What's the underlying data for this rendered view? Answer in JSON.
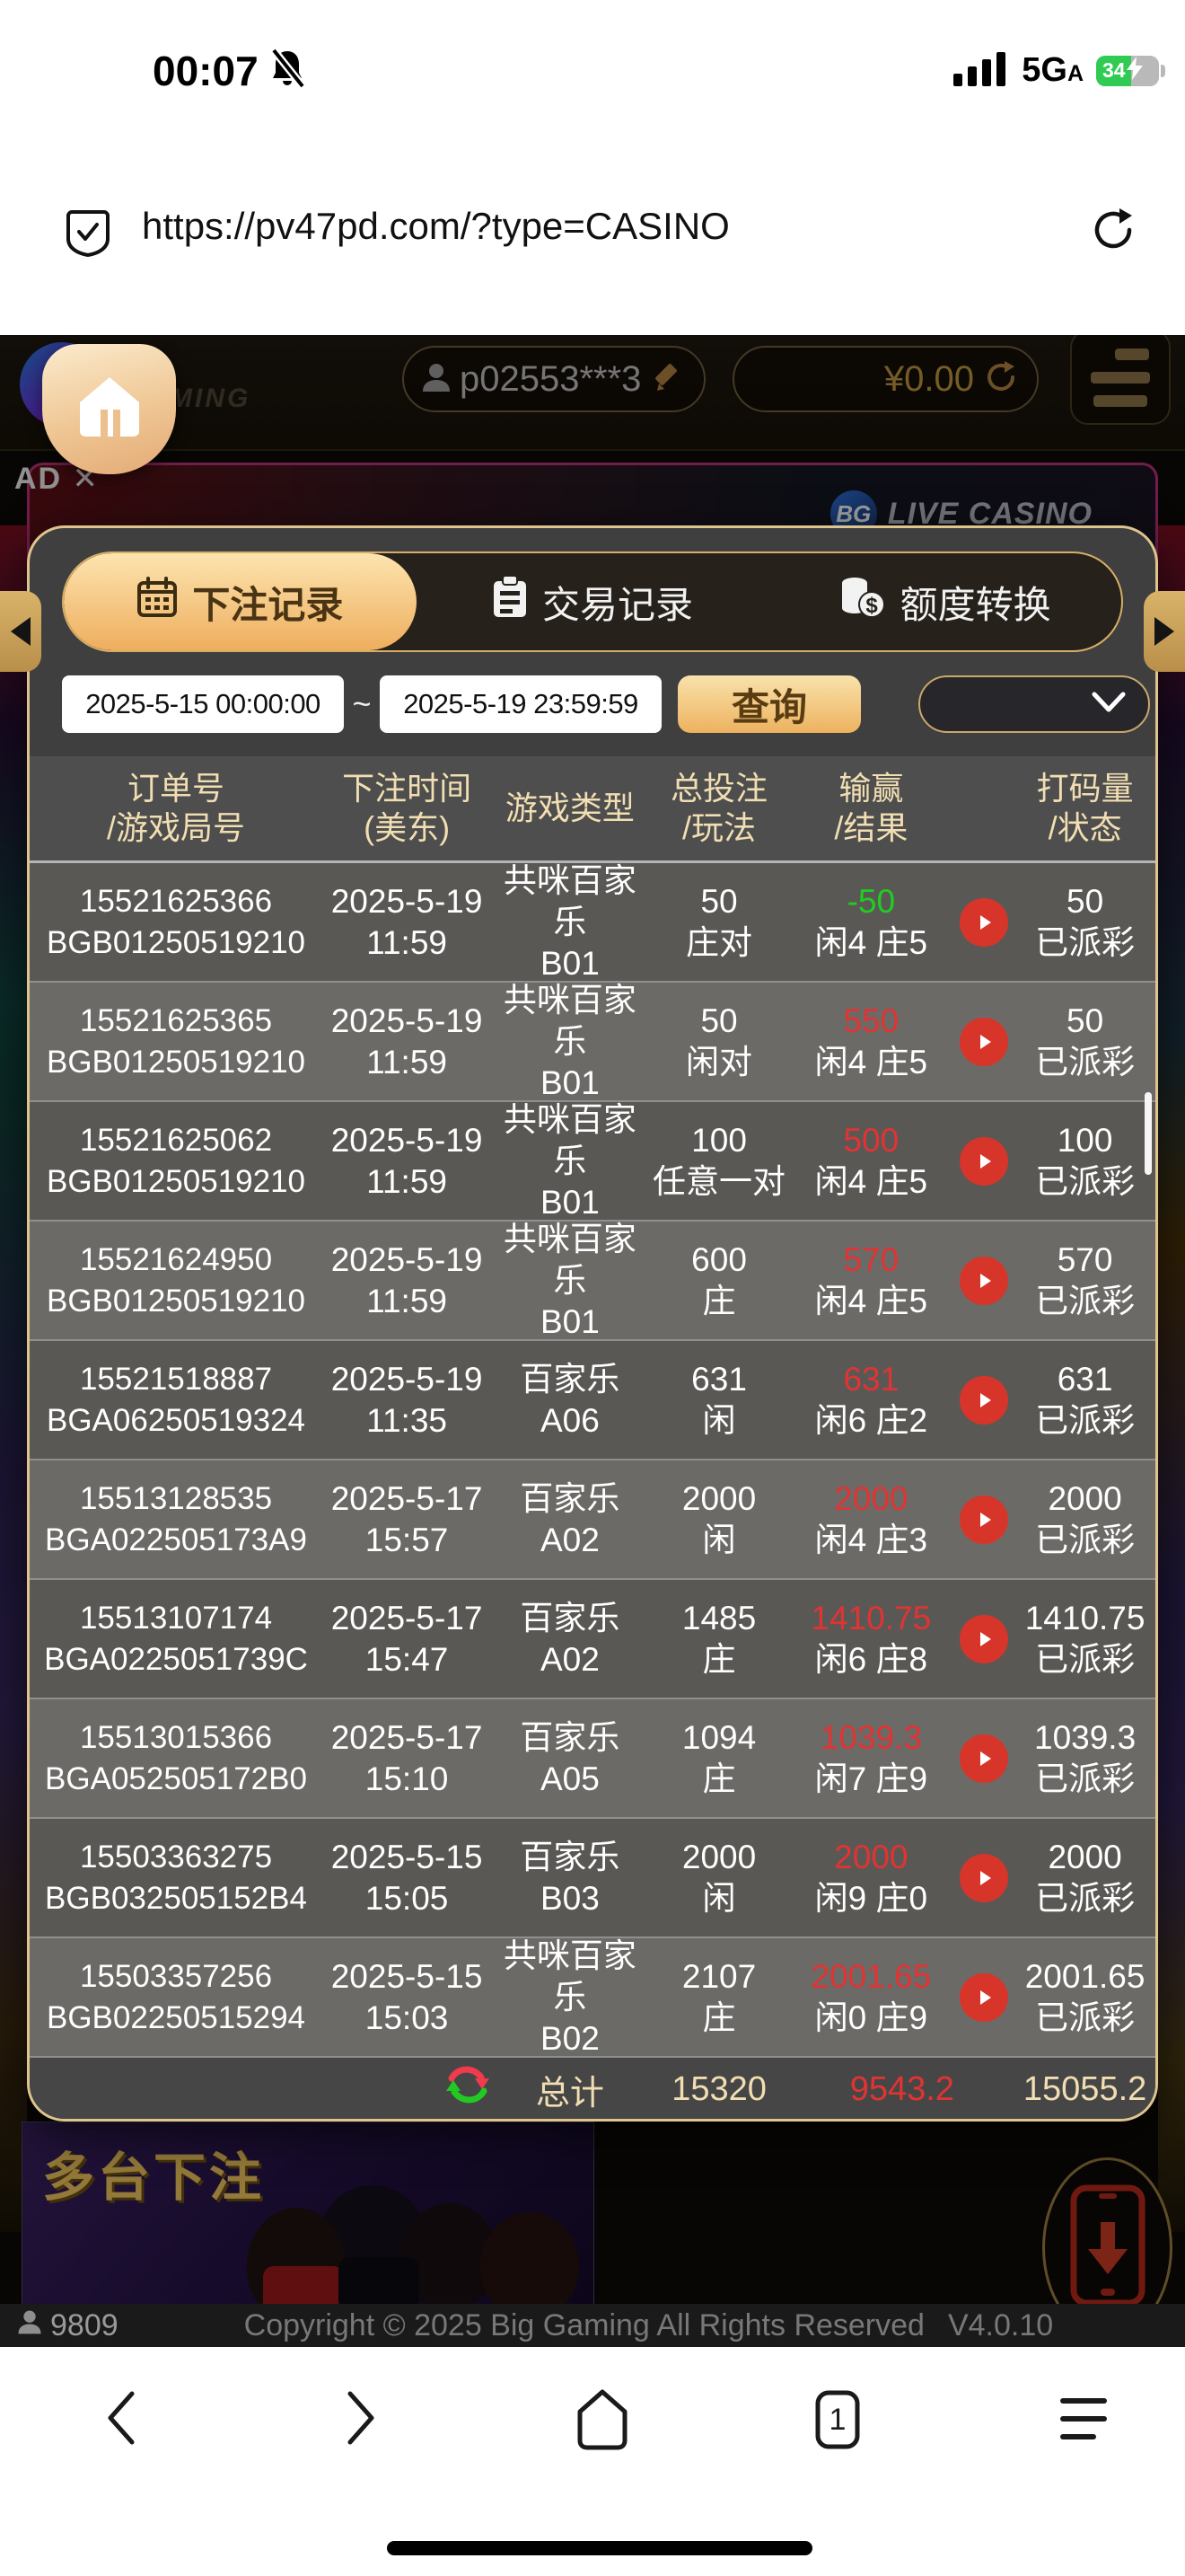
{
  "status_bar": {
    "time": "00:07",
    "network": "5G",
    "network_sub": "A",
    "battery": "34"
  },
  "url_bar": {
    "url": "https://pv47pd.com/?type=CASINO"
  },
  "site_header": {
    "logo_letter": "B",
    "logo_word": "GAMING",
    "username": "p02553***3",
    "balance": "¥0.00"
  },
  "ad": {
    "label": "AD ✕",
    "logo": "BG",
    "title": "LIVE CASINO"
  },
  "modal": {
    "tabs": [
      {
        "label": "下注记录"
      },
      {
        "label": "交易记录"
      },
      {
        "label": "额度转换"
      }
    ],
    "filter": {
      "from": "2025-5-15 00:00:00",
      "separator": "~",
      "to": "2025-5-19 23:59:59",
      "search_label": "查询"
    },
    "table": {
      "headers": [
        {
          "l1": "订单号",
          "l2": "/游戏局号"
        },
        {
          "l1": "下注时间",
          "l2": "(美东)"
        },
        {
          "l1": "游戏类型",
          "l2": ""
        },
        {
          "l1": "总投注",
          "l2": "/玩法"
        },
        {
          "l1": "输赢",
          "l2": "/结果"
        },
        {
          "l1": "打码量",
          "l2": "/状态"
        }
      ],
      "rows": [
        {
          "order_id": "15521625366",
          "round_id": "BGB01250519210",
          "date": "2025-5-19",
          "time": "11:59",
          "game_line1": "共咪百家乐",
          "game_line2": "B01",
          "bet": "50",
          "play": "庄对",
          "win": "-50",
          "win_color": "green",
          "outcome": "闲4 庄5",
          "turnover": "50",
          "status": "已派彩"
        },
        {
          "order_id": "15521625365",
          "round_id": "BGB01250519210",
          "date": "2025-5-19",
          "time": "11:59",
          "game_line1": "共咪百家乐",
          "game_line2": "B01",
          "bet": "50",
          "play": "闲对",
          "win": "550",
          "win_color": "red",
          "outcome": "闲4 庄5",
          "turnover": "50",
          "status": "已派彩"
        },
        {
          "order_id": "15521625062",
          "round_id": "BGB01250519210",
          "date": "2025-5-19",
          "time": "11:59",
          "game_line1": "共咪百家乐",
          "game_line2": "B01",
          "bet": "100",
          "play": "任意一对",
          "win": "500",
          "win_color": "red",
          "outcome": "闲4 庄5",
          "turnover": "100",
          "status": "已派彩"
        },
        {
          "order_id": "15521624950",
          "round_id": "BGB01250519210",
          "date": "2025-5-19",
          "time": "11:59",
          "game_line1": "共咪百家乐",
          "game_line2": "B01",
          "bet": "600",
          "play": "庄",
          "win": "570",
          "win_color": "red",
          "outcome": "闲4 庄5",
          "turnover": "570",
          "status": "已派彩"
        },
        {
          "order_id": "15521518887",
          "round_id": "BGA06250519324",
          "date": "2025-5-19",
          "time": "11:35",
          "game_line1": "百家乐A06",
          "game_line2": "",
          "bet": "631",
          "play": "闲",
          "win": "631",
          "win_color": "red",
          "outcome": "闲6 庄2",
          "turnover": "631",
          "status": "已派彩"
        },
        {
          "order_id": "15513128535",
          "round_id": "BGA022505173A9",
          "date": "2025-5-17",
          "time": "15:57",
          "game_line1": "百家乐A02",
          "game_line2": "",
          "bet": "2000",
          "play": "闲",
          "win": "2000",
          "win_color": "red",
          "outcome": "闲4 庄3",
          "turnover": "2000",
          "status": "已派彩"
        },
        {
          "order_id": "15513107174",
          "round_id": "BGA0225051739C",
          "date": "2025-5-17",
          "time": "15:47",
          "game_line1": "百家乐A02",
          "game_line2": "",
          "bet": "1485",
          "play": "庄",
          "win": "1410.75",
          "win_color": "red",
          "outcome": "闲6 庄8",
          "turnover": "1410.75",
          "status": "已派彩"
        },
        {
          "order_id": "15513015366",
          "round_id": "BGA052505172B0",
          "date": "2025-5-17",
          "time": "15:10",
          "game_line1": "百家乐A05",
          "game_line2": "",
          "bet": "1094",
          "play": "庄",
          "win": "1039.3",
          "win_color": "red",
          "outcome": "闲7 庄9",
          "turnover": "1039.3",
          "status": "已派彩"
        },
        {
          "order_id": "15503363275",
          "round_id": "BGB032505152B4",
          "date": "2025-5-15",
          "time": "15:05",
          "game_line1": "百家乐B03",
          "game_line2": "",
          "bet": "2000",
          "play": "闲",
          "win": "2000",
          "win_color": "red",
          "outcome": "闲9 庄0",
          "turnover": "2000",
          "status": "已派彩"
        },
        {
          "order_id": "15503357256",
          "round_id": "BGB02250515294",
          "date": "2025-5-15",
          "time": "15:03",
          "game_line1": "共咪百家乐",
          "game_line2": "B02",
          "bet": "2107",
          "play": "庄",
          "win": "2001.65",
          "win_color": "red",
          "outcome": "闲0 庄9",
          "turnover": "2001.65",
          "status": "已派彩"
        }
      ]
    },
    "total": {
      "label": "总计",
      "bet": "15320",
      "win": "9543.2",
      "turnover": "15055.2"
    }
  },
  "promo": {
    "title": "多台下注"
  },
  "footer": {
    "online": "9809",
    "copyright": "Copyright © 2025 Big Gaming All Rights Reserved",
    "version": "V4.0.10"
  },
  "browser_nav": {
    "tab_count": "1"
  },
  "colors": {
    "accent_gold": "#d9b36a",
    "active_tab_from": "#fde4af",
    "active_tab_to": "#eeae5e",
    "win_green": "#1ecf1e",
    "loss_red": "#e23333",
    "battery_green": "#2fcb53",
    "play_button_red": "#d7352a"
  }
}
